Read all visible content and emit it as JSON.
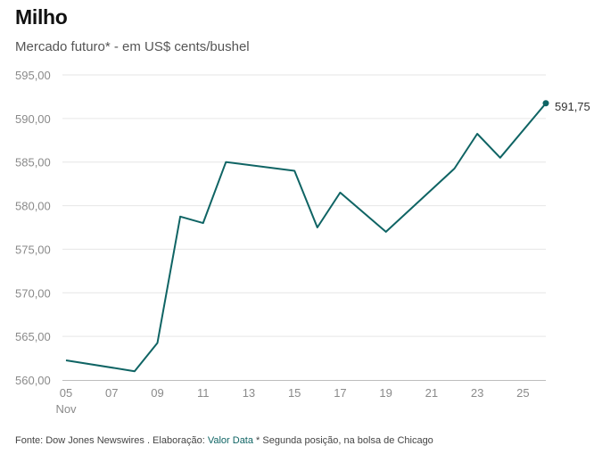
{
  "title": "Milho",
  "subtitle": "Mercado futuro* - em US$ cents/bushel",
  "footer": {
    "prefix": "Fonte: Dow Jones Newswires . Elaboração: ",
    "source_link": "Valor Data",
    "suffix": " * Segunda posição, na bolsa de Chicago"
  },
  "colors": {
    "line": "#0f6464",
    "grid": "#e6e6e6",
    "ticks": "#8a8a8a"
  },
  "chart_data": {
    "type": "line",
    "title": "Milho",
    "subtitle": "Mercado futuro* - em US$ cents/bushel",
    "xlabel": "",
    "ylabel": "US$ cents/bushel",
    "x": [
      5,
      8,
      9,
      10,
      11,
      12,
      15,
      16,
      17,
      19,
      22,
      23,
      24,
      26
    ],
    "values": [
      562.25,
      561.0,
      564.25,
      578.75,
      578.0,
      585.0,
      584.0,
      577.5,
      581.5,
      577.0,
      584.25,
      588.25,
      585.5,
      591.75
    ],
    "xlim": [
      5,
      26
    ],
    "ylim": [
      560,
      595
    ],
    "y_ticks": [
      "560,00",
      "565,00",
      "570,00",
      "575,00",
      "580,00",
      "585,00",
      "590,00",
      "595,00"
    ],
    "x_ticks": [
      "05",
      "07",
      "09",
      "11",
      "13",
      "15",
      "17",
      "19",
      "21",
      "23",
      "25"
    ],
    "x_tick_values": [
      5,
      7,
      9,
      11,
      13,
      15,
      17,
      19,
      21,
      23,
      25
    ],
    "x_sublabel": "Nov",
    "end_label": "591,75",
    "grid": true
  }
}
